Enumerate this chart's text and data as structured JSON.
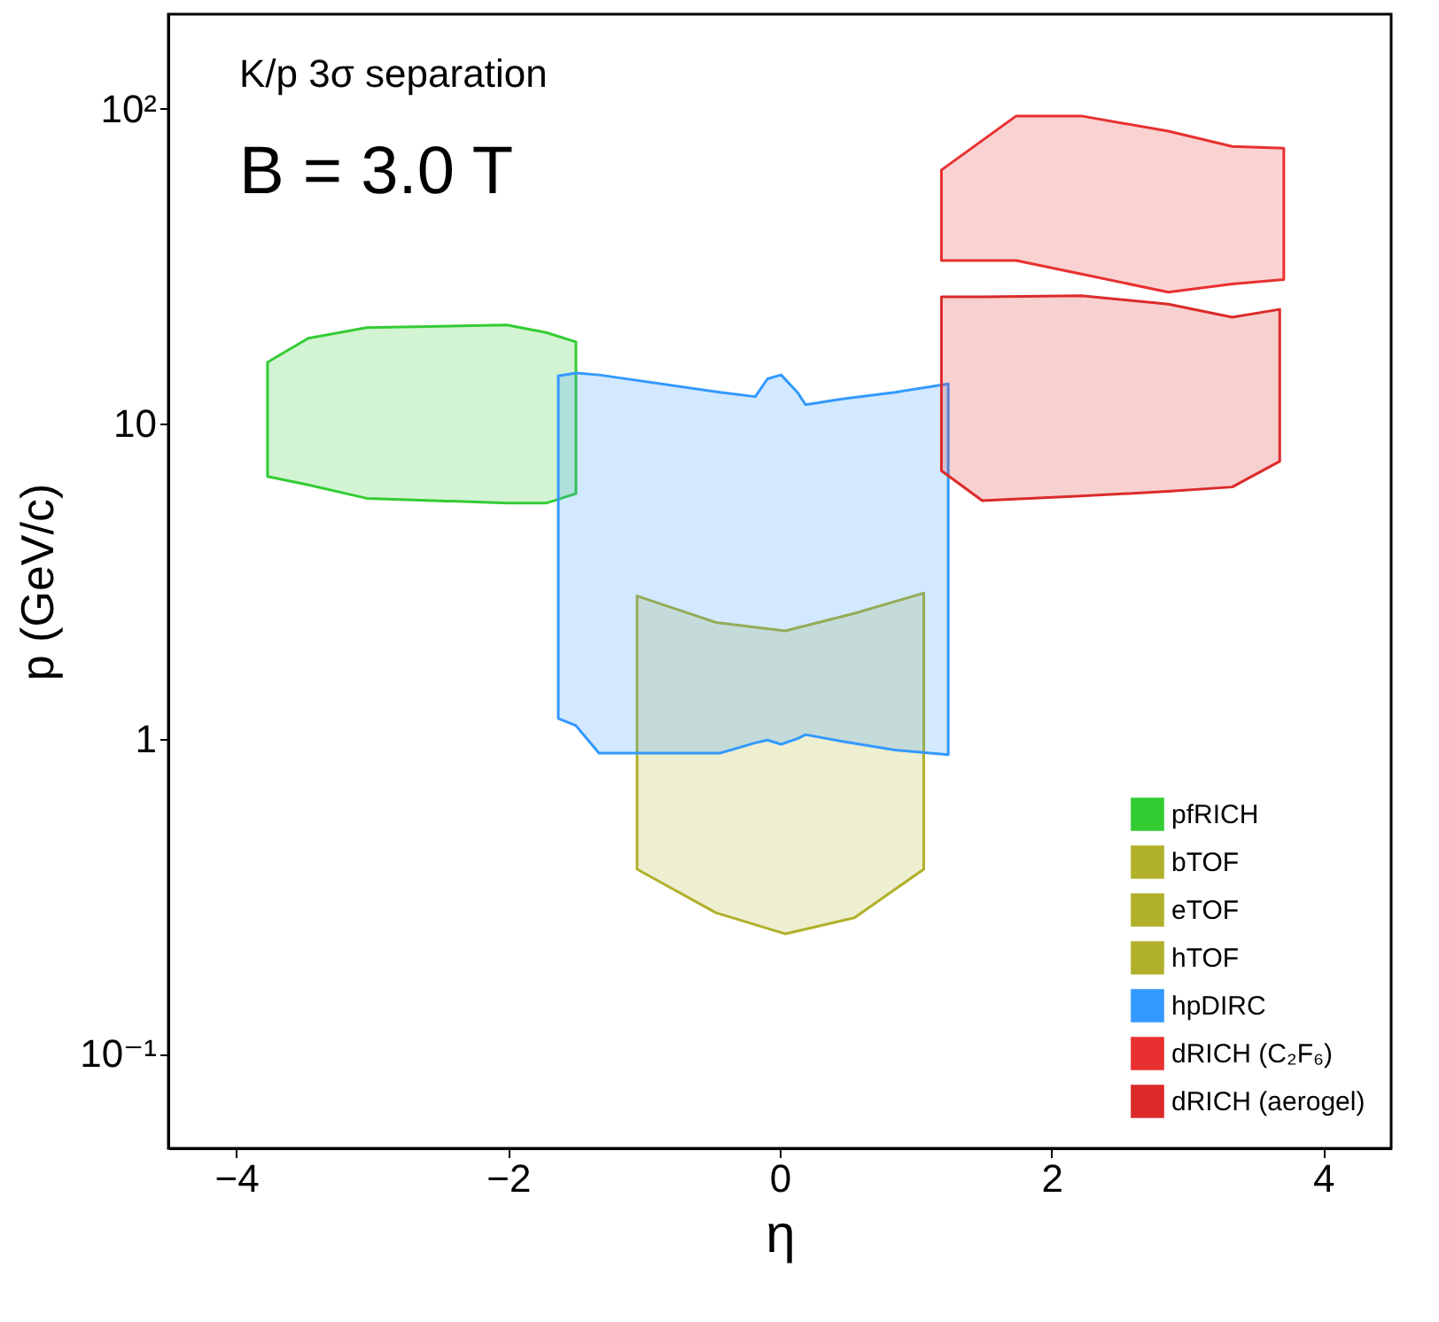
{
  "chart_data": {
    "type": "area",
    "xlabel": "η",
    "ylabel": "p (GeV/c)",
    "log": "y",
    "legend": "bottom right",
    "grid": false,
    "annotations": [
      "K/p 3σ separation",
      "B = 3.0 T"
    ],
    "xlim": [
      -4.5,
      4.5
    ],
    "xticks": [
      -4,
      -2,
      0,
      2,
      4
    ],
    "ylim": [
      0.05,
      200
    ],
    "yticks": [
      {
        "value": 0.1,
        "label": "10⁻¹"
      },
      1,
      10,
      {
        "value": 100,
        "label": "10²"
      }
    ],
    "series": [
      {
        "name": "pfRICH",
        "color": "#33cc33",
        "type": "area",
        "x": [
          -3.77,
          -3.47,
          -3.04,
          -2.01,
          -1.72,
          -1.5
        ],
        "values": [
          null,
          null,
          null,
          null,
          null,
          null
        ],
        "upper": [
          15.7,
          18.7,
          20.2,
          20.6,
          19.5,
          18.2
        ],
        "lower": [
          6.8,
          6.4,
          5.8,
          5.6,
          5.6,
          6.0
        ]
      },
      {
        "name": "bTOF",
        "color": "#b0b02a",
        "type": "area",
        "x": [
          -1.05,
          -0.47,
          0.04,
          0.55,
          1.06
        ],
        "values": [
          null,
          null,
          null,
          null,
          null
        ],
        "upper": [
          2.84,
          2.34,
          2.2,
          2.5,
          2.9
        ],
        "lower": [
          0.385,
          0.28,
          0.24,
          0.27,
          0.385
        ]
      },
      {
        "name": "eTOF",
        "color": "#b0b02a",
        "type": "area"
      },
      {
        "name": "hTOF",
        "color": "#b0b02a",
        "type": "area"
      },
      {
        "name": "hpDIRC",
        "color": "#3399ff",
        "type": "area",
        "x": [
          -1.63,
          -1.5,
          -1.33,
          -0.44,
          -0.18,
          -0.09,
          0.01,
          0.13,
          0.19,
          0.46,
          0.85,
          1.24
        ],
        "values": [
          null,
          null,
          null,
          null,
          null,
          null,
          null,
          null,
          null,
          null,
          null,
          null
        ],
        "upper": [
          14.2,
          14.5,
          14.3,
          12.6,
          12.2,
          13.9,
          14.3,
          12.6,
          11.5,
          12.0,
          12.6,
          13.4
        ],
        "lower": [
          1.16,
          1.1,
          0.9,
          0.9,
          0.97,
          0.99,
          0.96,
          1.0,
          1.03,
          0.98,
          0.92,
          0.89
        ]
      },
      {
        "name": "dRICH (C₂F₆)",
        "color": "#e83030",
        "type": "area",
        "x": [
          1.19,
          1.74,
          2.22,
          2.86,
          3.33,
          3.71
        ],
        "values": [
          null,
          null,
          null,
          null,
          null,
          null
        ],
        "upper": [
          64,
          95,
          95,
          85,
          76,
          75
        ],
        "lower": [
          33,
          33,
          29.9,
          26.2,
          27.8,
          28.7
        ]
      },
      {
        "name": "dRICH (aerogel)",
        "color": "#dc2a2a",
        "type": "area",
        "x": [
          1.19,
          1.49,
          2.22,
          2.86,
          3.33,
          3.68
        ],
        "values": [
          null,
          null,
          null,
          null,
          null,
          null
        ],
        "upper": [
          25.3,
          25.3,
          25.5,
          24.0,
          21.8,
          23.1
        ],
        "lower": [
          7.1,
          5.7,
          5.9,
          6.1,
          6.3,
          7.6
        ]
      }
    ]
  }
}
